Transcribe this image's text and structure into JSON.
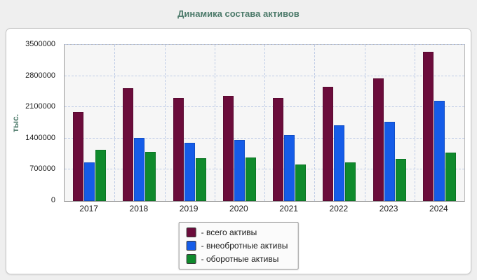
{
  "title": "Динамика состава активов",
  "ylabel": "тыс.",
  "chart_data": {
    "type": "bar",
    "categories": [
      "2017",
      "2018",
      "2019",
      "2020",
      "2021",
      "2022",
      "2023",
      "2024"
    ],
    "series": [
      {
        "name": "- всего активы",
        "color": "#6b0c3b",
        "values": [
          2000000,
          2520000,
          2300000,
          2350000,
          2310000,
          2560000,
          2740000,
          3350000
        ]
      },
      {
        "name": "- внеобротные активы",
        "color": "#155ce8",
        "values": [
          860000,
          1410000,
          1310000,
          1370000,
          1480000,
          1700000,
          1780000,
          2250000
        ]
      },
      {
        "name": "- оборотные активы",
        "color": "#0f8a2c",
        "values": [
          1150000,
          1100000,
          960000,
          970000,
          820000,
          870000,
          940000,
          1080000
        ]
      }
    ],
    "title": "Динамика состава активов",
    "xlabel": "",
    "ylabel": "тыс.",
    "ylim": [
      0,
      3500000
    ],
    "yticks": [
      0,
      700000,
      1400000,
      2100000,
      2800000,
      3500000
    ],
    "grid": true,
    "legend_position": "bottom"
  }
}
